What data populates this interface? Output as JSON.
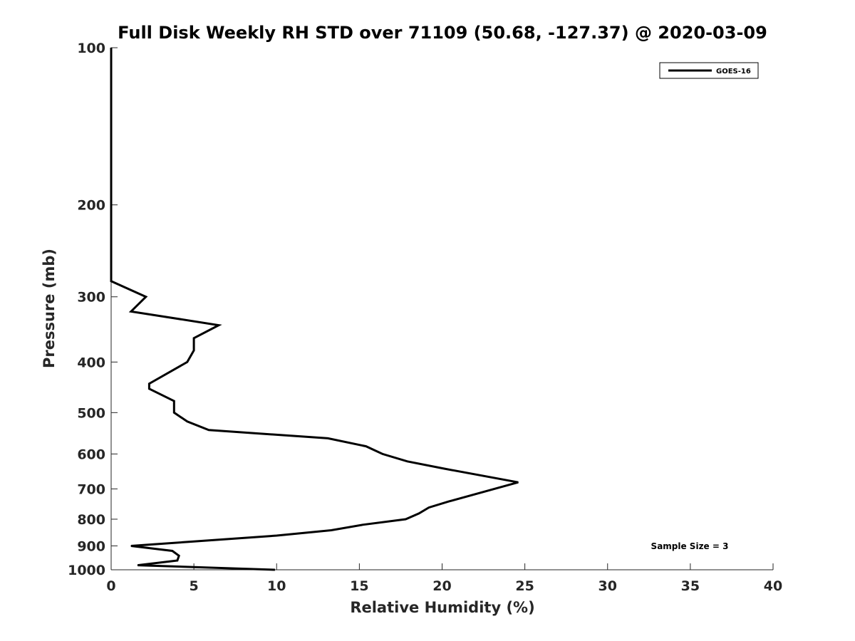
{
  "chart_data": {
    "type": "line",
    "title": "Full Disk Weekly RH STD over 71109 (50.68, -127.37) @ 2020-03-09",
    "xlabel": "Relative Humidity (%)",
    "ylabel": "Pressure (mb)",
    "xlim": [
      0,
      40
    ],
    "ylim": [
      100,
      1000
    ],
    "yscale": "log",
    "y_reversed": true,
    "xticks": [
      "0",
      "5",
      "10",
      "15",
      "20",
      "25",
      "30",
      "35",
      "40"
    ],
    "yticks": [
      "100",
      "200",
      "300",
      "400",
      "500",
      "600",
      "700",
      "800",
      "900",
      "1000"
    ],
    "grid": false,
    "legend_position": "top-right",
    "series": [
      {
        "name": "GOES-16",
        "color": "#000000",
        "points": [
          {
            "x": 0,
            "y": 100
          },
          {
            "x": 0,
            "y": 150
          },
          {
            "x": 0,
            "y": 200
          },
          {
            "x": 0,
            "y": 250
          },
          {
            "x": 0,
            "y": 280
          },
          {
            "x": 2.1,
            "y": 300
          },
          {
            "x": 1.2,
            "y": 320
          },
          {
            "x": 6.5,
            "y": 340
          },
          {
            "x": 5.0,
            "y": 360
          },
          {
            "x": 5.0,
            "y": 380
          },
          {
            "x": 4.6,
            "y": 400
          },
          {
            "x": 2.3,
            "y": 440
          },
          {
            "x": 2.3,
            "y": 450
          },
          {
            "x": 3.8,
            "y": 475
          },
          {
            "x": 3.8,
            "y": 500
          },
          {
            "x": 4.6,
            "y": 520
          },
          {
            "x": 5.9,
            "y": 540
          },
          {
            "x": 13.1,
            "y": 560
          },
          {
            "x": 15.4,
            "y": 580
          },
          {
            "x": 16.4,
            "y": 600
          },
          {
            "x": 17.9,
            "y": 620
          },
          {
            "x": 20.1,
            "y": 640
          },
          {
            "x": 24.6,
            "y": 680
          },
          {
            "x": 20.4,
            "y": 740
          },
          {
            "x": 19.2,
            "y": 760
          },
          {
            "x": 18.6,
            "y": 780
          },
          {
            "x": 17.8,
            "y": 800
          },
          {
            "x": 15.2,
            "y": 820
          },
          {
            "x": 13.3,
            "y": 840
          },
          {
            "x": 10.0,
            "y": 860
          },
          {
            "x": 1.2,
            "y": 900
          },
          {
            "x": 3.7,
            "y": 920
          },
          {
            "x": 4.1,
            "y": 940
          },
          {
            "x": 4.0,
            "y": 960
          },
          {
            "x": 1.6,
            "y": 980
          },
          {
            "x": 9.9,
            "y": 1000
          }
        ]
      }
    ],
    "annotations": [
      {
        "text": "Sample Size = 3"
      }
    ]
  }
}
